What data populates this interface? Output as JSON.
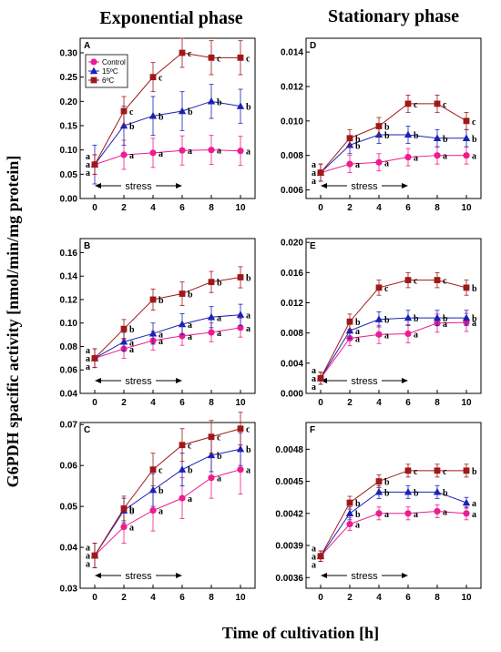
{
  "figure": {
    "col_titles": [
      "Exponential phase",
      "Stationary phase"
    ],
    "ylabel": "G6PDH spacific activity [nmol/min/mg protein]",
    "xlabel": "Time of cultivation [h]",
    "stress_label": "stress"
  },
  "colors": {
    "Control": "#ee1c8e",
    "15C": "#1a22b4",
    "6C": "#a01818"
  },
  "chart_data": [
    {
      "panel": "A",
      "type": "line",
      "x": [
        0,
        2,
        4,
        6,
        8,
        10
      ],
      "xlim": [
        -1,
        11
      ],
      "ylim": [
        0.0,
        0.33
      ],
      "yticks": [
        0.0,
        0.05,
        0.1,
        0.15,
        0.2,
        0.25,
        0.3
      ],
      "ytick_labels": [
        "0.00",
        "0.05",
        "0.10",
        "0.15",
        "0.20",
        "0.25",
        "0.30"
      ],
      "stress_range": [
        0,
        6
      ],
      "legend": "top-left",
      "series": [
        {
          "name": "Control",
          "key": "Control",
          "marker": "circle",
          "values": [
            0.07,
            0.09,
            0.094,
            0.099,
            0.1,
            0.098
          ],
          "errors": [
            0.02,
            0.03,
            0.03,
            0.03,
            0.03,
            0.03
          ],
          "letters": [
            "a",
            "a",
            "a",
            "a",
            "a",
            "a"
          ]
        },
        {
          "name": "15ºC",
          "key": "15C",
          "marker": "triangle",
          "values": [
            0.07,
            0.15,
            0.17,
            0.18,
            0.2,
            0.19
          ],
          "errors": [
            0.04,
            0.04,
            0.04,
            0.04,
            0.035,
            0.035
          ],
          "letters": [
            "a",
            "b",
            "b",
            "b",
            "b",
            "b"
          ]
        },
        {
          "name": "6ºC",
          "key": "6C",
          "marker": "square",
          "values": [
            0.07,
            0.18,
            0.25,
            0.3,
            0.29,
            0.29
          ],
          "errors": [
            0.02,
            0.03,
            0.03,
            0.03,
            0.035,
            0.035
          ],
          "letters": [
            "a",
            "c",
            "c",
            "c",
            "c",
            "c"
          ]
        }
      ]
    },
    {
      "panel": "B",
      "type": "line",
      "x": [
        0,
        2,
        4,
        6,
        8,
        10
      ],
      "xlim": [
        -1,
        11
      ],
      "ylim": [
        0.04,
        0.172
      ],
      "yticks": [
        0.04,
        0.06,
        0.08,
        0.1,
        0.12,
        0.14,
        0.16
      ],
      "ytick_labels": [
        "0.04",
        "0.06",
        "0.08",
        "0.10",
        "0.12",
        "0.14",
        "0.16"
      ],
      "stress_range": [
        0,
        6
      ],
      "series": [
        {
          "name": "Control",
          "key": "Control",
          "marker": "circle",
          "values": [
            0.07,
            0.078,
            0.085,
            0.089,
            0.092,
            0.096
          ],
          "errors": [
            0.008,
            0.008,
            0.008,
            0.008,
            0.008,
            0.008
          ],
          "letters": [
            "a",
            "a",
            "a",
            "a",
            "a",
            "a"
          ]
        },
        {
          "name": "15ºC",
          "key": "15C",
          "marker": "triangle",
          "values": [
            0.07,
            0.084,
            0.091,
            0.099,
            0.105,
            0.107
          ],
          "errors": [
            0.008,
            0.008,
            0.009,
            0.009,
            0.009,
            0.009
          ],
          "letters": [
            "a",
            "a",
            "a",
            "a",
            "a",
            "a"
          ]
        },
        {
          "name": "6ºC",
          "key": "6C",
          "marker": "square",
          "values": [
            0.07,
            0.095,
            0.12,
            0.125,
            0.135,
            0.139
          ],
          "errors": [
            0.008,
            0.008,
            0.009,
            0.01,
            0.009,
            0.009
          ],
          "letters": [
            "a",
            "b",
            "b",
            "b",
            "b",
            "b"
          ]
        }
      ]
    },
    {
      "panel": "C",
      "type": "line",
      "x": [
        0,
        2,
        4,
        6,
        8,
        10
      ],
      "xlim": [
        -1,
        11
      ],
      "ylim": [
        0.03,
        0.0705
      ],
      "yticks": [
        0.03,
        0.04,
        0.05,
        0.06,
        0.07
      ],
      "ytick_labels": [
        "0.03",
        "0.04",
        "0.05",
        "0.06",
        "0.07"
      ],
      "stress_range": [
        0,
        6
      ],
      "series": [
        {
          "name": "Control",
          "key": "Control",
          "marker": "circle",
          "values": [
            0.038,
            0.045,
            0.049,
            0.052,
            0.057,
            0.059
          ],
          "errors": [
            0.003,
            0.004,
            0.005,
            0.005,
            0.005,
            0.006
          ],
          "letters": [
            "a",
            "a",
            "a",
            "a",
            "a",
            "a"
          ]
        },
        {
          "name": "15ºC",
          "key": "15C",
          "marker": "triangle",
          "values": [
            0.038,
            0.049,
            0.054,
            0.059,
            0.0625,
            0.064
          ],
          "errors": [
            0.003,
            0.003,
            0.004,
            0.004,
            0.004,
            0.004
          ],
          "letters": [
            "a",
            "b",
            "b",
            "b",
            "b",
            "b"
          ]
        },
        {
          "name": "6ºC",
          "key": "6C",
          "marker": "square",
          "values": [
            0.038,
            0.0495,
            0.059,
            0.065,
            0.067,
            0.069
          ],
          "errors": [
            0.003,
            0.003,
            0.004,
            0.004,
            0.004,
            0.004
          ],
          "letters": [
            "a",
            "b",
            "c",
            "c",
            "c",
            "c"
          ]
        }
      ]
    },
    {
      "panel": "D",
      "type": "line",
      "x": [
        0,
        2,
        4,
        6,
        8,
        10
      ],
      "xlim": [
        -1,
        11
      ],
      "ylim": [
        0.0055,
        0.0148
      ],
      "yticks": [
        0.006,
        0.008,
        0.01,
        0.012,
        0.014
      ],
      "ytick_labels": [
        "0.006",
        "0.008",
        "0.010",
        "0.012",
        "0.014"
      ],
      "stress_range": [
        0,
        6
      ],
      "series": [
        {
          "name": "Control",
          "key": "Control",
          "marker": "circle",
          "values": [
            0.007,
            0.0075,
            0.0076,
            0.0079,
            0.008,
            0.008
          ],
          "errors": [
            0.0005,
            0.0005,
            0.0005,
            0.0005,
            0.0005,
            0.0005
          ],
          "letters": [
            "a",
            "a",
            "a",
            "a",
            "a",
            "a"
          ]
        },
        {
          "name": "15ºC",
          "key": "15C",
          "marker": "triangle",
          "values": [
            0.007,
            0.0086,
            0.0092,
            0.0092,
            0.009,
            0.009
          ],
          "errors": [
            0.0005,
            0.0005,
            0.0005,
            0.0005,
            0.0005,
            0.0005
          ],
          "letters": [
            "a",
            "b",
            "b",
            "b",
            "b",
            "b"
          ]
        },
        {
          "name": "6ºC",
          "key": "6C",
          "marker": "square",
          "values": [
            0.007,
            0.009,
            0.0097,
            0.011,
            0.011,
            0.01
          ],
          "errors": [
            0.0005,
            0.0005,
            0.0005,
            0.0005,
            0.0005,
            0.0005
          ],
          "letters": [
            "a",
            "b",
            "b",
            "c",
            "c",
            "c"
          ]
        }
      ]
    },
    {
      "panel": "E",
      "type": "line",
      "x": [
        0,
        2,
        4,
        6,
        8,
        10
      ],
      "xlim": [
        -1,
        11
      ],
      "ylim": [
        0.0,
        0.0205
      ],
      "yticks": [
        0.0,
        0.004,
        0.008,
        0.012,
        0.016,
        0.02
      ],
      "ytick_labels": [
        "0.000",
        "0.004",
        "0.008",
        "0.012",
        "0.016",
        "0.020"
      ],
      "stress_range": [
        0,
        6
      ],
      "series": [
        {
          "name": "Control",
          "key": "Control",
          "marker": "circle",
          "values": [
            0.002,
            0.0073,
            0.0078,
            0.0079,
            0.0093,
            0.0094
          ],
          "errors": [
            0.0008,
            0.001,
            0.0012,
            0.0012,
            0.0012,
            0.0012
          ],
          "letters": [
            "a",
            "a",
            "a",
            "a",
            "a",
            "a"
          ]
        },
        {
          "name": "15ºC",
          "key": "15C",
          "marker": "triangle",
          "values": [
            0.002,
            0.0083,
            0.0098,
            0.01,
            0.01,
            0.01
          ],
          "errors": [
            0.0008,
            0.001,
            0.001,
            0.001,
            0.001,
            0.001
          ],
          "letters": [
            "a",
            "a",
            "b",
            "b",
            "b",
            "b"
          ]
        },
        {
          "name": "6ºC",
          "key": "6C",
          "marker": "square",
          "values": [
            0.002,
            0.0095,
            0.014,
            0.015,
            0.015,
            0.014
          ],
          "errors": [
            0.0008,
            0.001,
            0.001,
            0.001,
            0.001,
            0.001
          ],
          "letters": [
            "a",
            "b",
            "c",
            "c",
            "c",
            "b"
          ]
        }
      ]
    },
    {
      "panel": "F",
      "type": "line",
      "x": [
        0,
        2,
        4,
        6,
        8,
        10
      ],
      "xlim": [
        -1,
        11
      ],
      "ylim": [
        0.0035,
        0.00505
      ],
      "yticks": [
        0.0036,
        0.0039,
        0.0042,
        0.0045,
        0.0048
      ],
      "ytick_labels": [
        "0.0036",
        "0.0039",
        "0.0042",
        "0.0045",
        "0.0048"
      ],
      "stress_range": [
        0,
        6
      ],
      "series": [
        {
          "name": "Control",
          "key": "Control",
          "marker": "circle",
          "values": [
            0.0038,
            0.0041,
            0.0042,
            0.0042,
            0.00422,
            0.0042
          ],
          "errors": [
            5e-05,
            6e-05,
            6e-05,
            6e-05,
            6e-05,
            6e-05
          ],
          "letters": [
            "a",
            "a",
            "a",
            "a",
            "a",
            "a"
          ]
        },
        {
          "name": "15ºC",
          "key": "15C",
          "marker": "triangle",
          "values": [
            0.0038,
            0.0042,
            0.0044,
            0.0044,
            0.0044,
            0.0043
          ],
          "errors": [
            5e-05,
            6e-05,
            6e-05,
            6e-05,
            6e-05,
            5e-05
          ],
          "letters": [
            "a",
            "b",
            "b",
            "b",
            "b",
            "a"
          ]
        },
        {
          "name": "6ºC",
          "key": "6C",
          "marker": "square",
          "values": [
            0.0038,
            0.0043,
            0.0045,
            0.0046,
            0.0046,
            0.0046
          ],
          "errors": [
            5e-05,
            6e-05,
            6e-05,
            6e-05,
            6e-05,
            6e-05
          ],
          "letters": [
            "a",
            "b",
            "b",
            "c",
            "c",
            "b"
          ]
        }
      ]
    }
  ]
}
